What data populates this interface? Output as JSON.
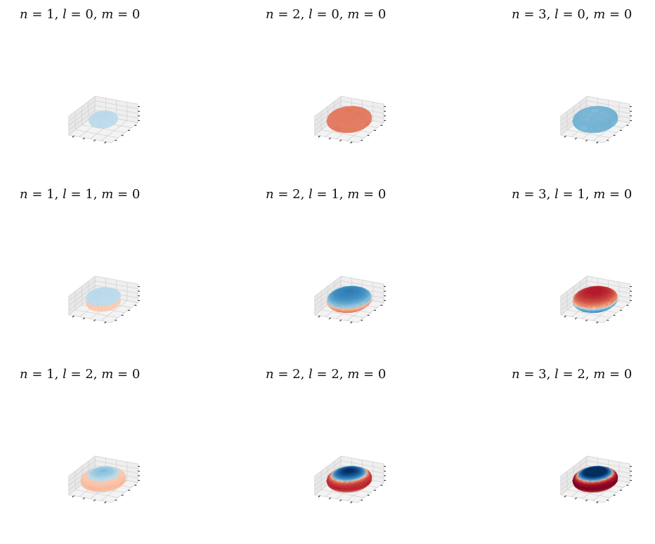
{
  "chart_data": [
    {
      "type": "scatter",
      "projection": "3d",
      "colormap": "RdBu",
      "n": 1,
      "l": 0,
      "m": 0,
      "title": "$n=1, l=0, m=0$"
    },
    {
      "type": "scatter",
      "projection": "3d",
      "colormap": "RdBu",
      "n": 2,
      "l": 0,
      "m": 0,
      "title": "$n=2, l=0, m=0$"
    },
    {
      "type": "scatter",
      "projection": "3d",
      "colormap": "RdBu",
      "n": 3,
      "l": 0,
      "m": 0,
      "title": "$n=3, l=0, m=0$"
    },
    {
      "type": "scatter",
      "projection": "3d",
      "colormap": "RdBu",
      "n": 1,
      "l": 1,
      "m": 0,
      "title": "$n=1, l=1, m=0$"
    },
    {
      "type": "scatter",
      "projection": "3d",
      "colormap": "RdBu",
      "n": 2,
      "l": 1,
      "m": 0,
      "title": "$n=2, l=1, m=0$"
    },
    {
      "type": "scatter",
      "projection": "3d",
      "colormap": "RdBu",
      "n": 3,
      "l": 1,
      "m": 0,
      "title": "$n=3, l=1, m=0$"
    },
    {
      "type": "scatter",
      "projection": "3d",
      "colormap": "RdBu",
      "n": 1,
      "l": 2,
      "m": 0,
      "title": "$n=1, l=2, m=0$"
    },
    {
      "type": "scatter",
      "projection": "3d",
      "colormap": "RdBu",
      "n": 2,
      "l": 2,
      "m": 0,
      "title": "$n=2, l=2, m=0$"
    },
    {
      "type": "scatter",
      "projection": "3d",
      "colormap": "RdBu",
      "n": 3,
      "l": 2,
      "m": 0,
      "title": "$n=3, l=2, m=0$"
    }
  ],
  "colors": {
    "positive": "#053061",
    "negative": "#67001f",
    "neutral": "#f7f7f7",
    "pane": "#efefef",
    "grid": "#cfcfcf"
  }
}
